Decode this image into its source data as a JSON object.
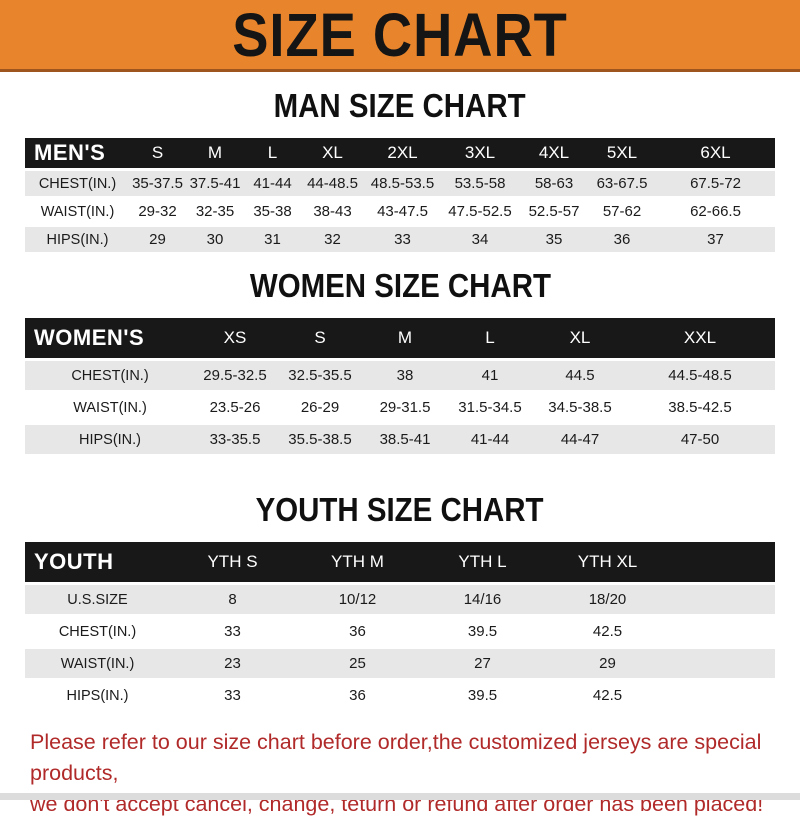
{
  "banner": {
    "title": "SIZE CHART"
  },
  "colors": {
    "banner_bg": "#E8852C",
    "banner_border": "#9E561E",
    "header_bar": "#181818",
    "row_gray": "#E7E7E7",
    "footer_red": "#B12A2A"
  },
  "sections": {
    "men": {
      "heading": "MAN SIZE CHART",
      "header_label": "MEN'S",
      "columns": [
        "S",
        "M",
        "L",
        "XL",
        "2XL",
        "3XL",
        "4XL",
        "5XL",
        "6XL"
      ],
      "rows": [
        {
          "label": "CHEST(IN.)",
          "values": [
            "35-37.5",
            "37.5-41",
            "41-44",
            "44-48.5",
            "48.5-53.5",
            "53.5-58",
            "58-63",
            "63-67.5",
            "67.5-72"
          ]
        },
        {
          "label": "WAIST(IN.)",
          "values": [
            "29-32",
            "32-35",
            "35-38",
            "38-43",
            "43-47.5",
            "47.5-52.5",
            "52.5-57",
            "57-62",
            "62-66.5"
          ]
        },
        {
          "label": "HIPS(IN.)",
          "values": [
            "29",
            "30",
            "31",
            "32",
            "33",
            "34",
            "35",
            "36",
            "37"
          ]
        }
      ]
    },
    "women": {
      "heading": "WOMEN SIZE CHART",
      "header_label": "WOMEN'S",
      "columns": [
        "XS",
        "S",
        "M",
        "L",
        "XL",
        "XXL"
      ],
      "rows": [
        {
          "label": "CHEST(IN.)",
          "values": [
            "29.5-32.5",
            "32.5-35.5",
            "38",
            "41",
            "44.5",
            "44.5-48.5"
          ]
        },
        {
          "label": "WAIST(IN.)",
          "values": [
            "23.5-26",
            "26-29",
            "29-31.5",
            "31.5-34.5",
            "34.5-38.5",
            "38.5-42.5"
          ]
        },
        {
          "label": "HIPS(IN.)",
          "values": [
            "33-35.5",
            "35.5-38.5",
            "38.5-41",
            "41-44",
            "44-47",
            "47-50"
          ]
        }
      ]
    },
    "youth": {
      "heading": "YOUTH SIZE CHART",
      "header_label": "YOUTH",
      "columns": [
        "YTH S",
        "YTH M",
        "YTH L",
        "YTH XL"
      ],
      "rows": [
        {
          "label": "U.S.SIZE",
          "values": [
            "8",
            "10/12",
            "14/16",
            "18/20"
          ]
        },
        {
          "label": "CHEST(IN.)",
          "values": [
            "33",
            "36",
            "39.5",
            "42.5"
          ]
        },
        {
          "label": "WAIST(IN.)",
          "values": [
            "23",
            "25",
            "27",
            "29"
          ]
        },
        {
          "label": "HIPS(IN.)",
          "values": [
            "33",
            "36",
            "39.5",
            "42.5"
          ]
        }
      ]
    }
  },
  "footer": {
    "line1": "Please refer to our size chart before order,the customized jerseys are special products,",
    "line2": "we don't accept cancel, change, teturn or refund after order has been placed!"
  }
}
